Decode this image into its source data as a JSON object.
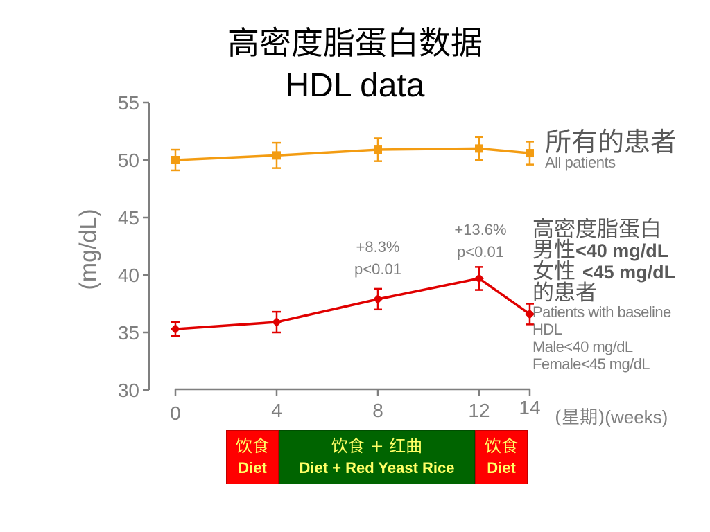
{
  "title": {
    "line1": "高密度脂蛋白数据",
    "line2": "HDL data"
  },
  "y_axis_label": "(mg/dL)",
  "x_axis_unit": {
    "zh": "(星期)",
    "en": "(weeks)"
  },
  "labels": {
    "all_patients": {
      "zh": "所有的患者",
      "en": "All patients"
    },
    "low_hdl": {
      "zh_line1": "高密度脂蛋白",
      "zh_line2_prefix": "男性",
      "zh_line2_value": "<40 mg/dL",
      "zh_line3_prefix": "女性 ",
      "zh_line3_value": "<45 mg/dL",
      "zh_line4": "的患者",
      "en_line1": "Patients with baseline",
      "en_line2": "HDL",
      "en_line3": "Male<40 mg/dL",
      "en_line4": "Female<45 mg/dL"
    }
  },
  "annotations": [
    {
      "line1": "+8.3%",
      "line2": "p<0.01"
    },
    {
      "line1": "+13.6%",
      "line2": "p<0.01"
    }
  ],
  "phases": [
    {
      "zh": "饮食",
      "en": "Diet",
      "color": "#ff0000"
    },
    {
      "zh": "饮食 + 红曲",
      "en": "Diet + Red Yeast Rice",
      "color": "#006400"
    },
    {
      "zh": "饮食",
      "en": "Diet",
      "color": "#ff0000"
    }
  ],
  "chart_data": {
    "type": "line",
    "x": [
      0,
      4,
      8,
      12,
      14
    ],
    "xticks": [
      "0",
      "4",
      "8",
      "12",
      "14"
    ],
    "ylim": [
      30,
      55
    ],
    "yticks": [
      30,
      35,
      40,
      45,
      50,
      55
    ],
    "grid": false,
    "series": [
      {
        "name": "All patients",
        "color": "#f39c12",
        "marker": "square",
        "values": [
          50.0,
          50.4,
          50.9,
          51.0,
          50.6
        ],
        "error": [
          0.9,
          1.1,
          1.0,
          1.0,
          1.0
        ]
      },
      {
        "name": "Patients with baseline HDL Male<40 mg/dL Female<45 mg/dL",
        "color": "#e00000",
        "marker": "diamond",
        "values": [
          35.3,
          35.9,
          37.9,
          39.7,
          36.6
        ],
        "error": [
          0.6,
          0.9,
          0.9,
          1.0,
          0.9
        ]
      }
    ]
  }
}
